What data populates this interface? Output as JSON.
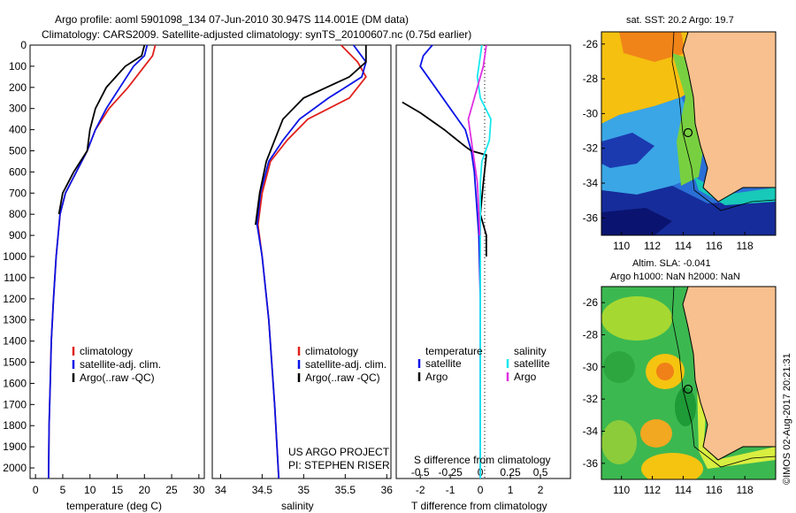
{
  "header": {
    "line1": "Argo profile: aoml 5901098_134 07-Jun-2010 30.947S 114.001E (DM data)",
    "line2": "Climatology: CARS2009. Satellite-adjusted climatology: synTS_20100607.nc (0.75d earlier)"
  },
  "colors": {
    "climatology": "#e0201c",
    "satellite": "#0a14e6",
    "argo": "#000000",
    "sat_salinity": "#18e8ee",
    "argo_salinity": "#e030e0",
    "land": "#f7c08e"
  },
  "axis": {
    "depth_ticks": [
      "0",
      "100",
      "200",
      "300",
      "400",
      "500",
      "600",
      "700",
      "800",
      "900",
      "1000",
      "1100",
      "1200",
      "1300",
      "1400",
      "1500",
      "1600",
      "1700",
      "1800",
      "1900",
      "2000"
    ]
  },
  "panels": {
    "temperature": {
      "xlabel": "temperature (deg C)",
      "ticks": [
        "0",
        "5",
        "10",
        "15",
        "20",
        "25",
        "30"
      ],
      "legend": [
        "climatology",
        "satellite-adj. clim.",
        "Argo(..raw -QC)"
      ]
    },
    "salinity": {
      "xlabel": "salinity",
      "ticks": [
        "34",
        "34.5",
        "35",
        "35.5",
        "36"
      ],
      "legend": [
        "climatology",
        "satellite-adj. clim.",
        "Argo(..raw -QC)"
      ],
      "credit1": "US ARGO PROJECT",
      "credit2": "PI: STEPHEN RISER"
    },
    "difference": {
      "xlabel": "T difference from climatology",
      "top_title": "S difference from climatology",
      "s_ticks": [
        "-0.5",
        "-0.25",
        "0",
        "0.25",
        "0.5"
      ],
      "t_ticks": [
        "-2",
        "-1",
        "0",
        "1",
        "2"
      ],
      "legend_temp_head": "temperature",
      "legend_sal_head": "salinity",
      "legend_sat": "satellite",
      "legend_argo": "Argo"
    }
  },
  "maps": {
    "sst": {
      "title": "sat. SST: 20.2  Argo: 19.7",
      "yticks": [
        "-26",
        "-28",
        "-30",
        "-32",
        "-34",
        "-36"
      ],
      "xticks": [
        "110",
        "112",
        "114",
        "116",
        "118"
      ]
    },
    "sla": {
      "title1": "Altim. SLA: -0.041",
      "title2": "Argo h1000: NaN h2000: NaN",
      "yticks": [
        "-26",
        "-28",
        "-30",
        "-32",
        "-34",
        "-36"
      ],
      "xticks": [
        "110",
        "112",
        "114",
        "116",
        "118"
      ]
    }
  },
  "watermark": "©IMOS 02-Aug-2017 20:21:31",
  "chart_data": [
    {
      "type": "line",
      "xlabel": "temperature (deg C)",
      "ylabel": "",
      "xlim": [
        -1,
        31
      ],
      "ylim": [
        2050,
        0
      ],
      "series": [
        {
          "name": "climatology",
          "x": [
            22.0,
            21.5,
            20.0,
            17.0,
            13.5,
            11.0,
            9.5,
            7.5,
            5.5,
            4.5,
            3.8,
            3.3,
            2.9,
            2.7,
            2.5,
            2.4
          ],
          "y": [
            0,
            50,
            100,
            200,
            300,
            400,
            500,
            600,
            700,
            800,
            1000,
            1200,
            1400,
            1600,
            1800,
            2050
          ]
        },
        {
          "name": "satellite-adj. clim.",
          "x": [
            20.5,
            20.0,
            18.0,
            15.5,
            13.0,
            11.0,
            9.5,
            7.5,
            5.5,
            4.5,
            3.8,
            3.3,
            2.9,
            2.7,
            2.5,
            2.4
          ],
          "y": [
            0,
            50,
            100,
            200,
            300,
            400,
            500,
            600,
            700,
            800,
            1000,
            1200,
            1400,
            1600,
            1800,
            2050
          ]
        },
        {
          "name": "Argo(..raw -QC)",
          "x": [
            20.0,
            19.5,
            16.5,
            13.0,
            11.0,
            10.0,
            9.5,
            7.0,
            5.0,
            4.3
          ],
          "y": [
            0,
            50,
            100,
            200,
            300,
            400,
            500,
            600,
            700,
            800
          ]
        }
      ]
    },
    {
      "type": "line",
      "xlabel": "salinity",
      "xlim": [
        33.9,
        36.05
      ],
      "ylim": [
        2050,
        0
      ],
      "series": [
        {
          "name": "climatology",
          "x": [
            35.45,
            35.65,
            35.75,
            35.55,
            35.05,
            34.8,
            34.6,
            34.5,
            34.45,
            34.5,
            34.58,
            34.65,
            34.7
          ],
          "y": [
            0,
            80,
            150,
            250,
            350,
            450,
            550,
            700,
            850,
            1000,
            1300,
            1700,
            2050
          ]
        },
        {
          "name": "satellite-adj. clim.",
          "x": [
            35.6,
            35.75,
            35.7,
            35.3,
            34.95,
            34.75,
            34.58,
            34.48,
            34.44,
            34.5,
            34.58,
            34.65,
            34.7
          ],
          "y": [
            0,
            80,
            150,
            250,
            350,
            450,
            550,
            700,
            850,
            1000,
            1300,
            1700,
            2050
          ]
        },
        {
          "name": "Argo(..raw -QC)",
          "x": [
            35.75,
            35.75,
            35.55,
            35.0,
            34.75,
            34.65,
            34.55,
            34.47,
            34.42
          ],
          "y": [
            0,
            80,
            150,
            250,
            350,
            450,
            550,
            700,
            850
          ]
        }
      ]
    },
    {
      "type": "line",
      "xlabel": "T difference from climatology",
      "title": "S difference from climatology",
      "xlim": [
        -2.8,
        3.0
      ],
      "ylim": [
        2050,
        0
      ],
      "series": [
        {
          "name": "temperature satellite",
          "x": [
            -1.6,
            -1.9,
            -2.0,
            -1.5,
            -1.0,
            -0.5,
            -0.3,
            -0.2,
            -0.15,
            -0.1,
            -0.05,
            0.0,
            0.0,
            0.0
          ],
          "y": [
            0,
            50,
            100,
            200,
            300,
            400,
            500,
            600,
            700,
            800,
            900,
            1200,
            1600,
            2050
          ]
        },
        {
          "name": "temperature Argo",
          "x": [
            -2.6,
            -2.0,
            -1.2,
            -0.5,
            -0.3,
            0.2,
            0.1,
            0.0,
            0.2,
            0.2
          ],
          "y": [
            270,
            320,
            400,
            480,
            500,
            520,
            650,
            800,
            900,
            1000
          ]
        },
        {
          "name": "salinity satellite",
          "x": [
            0.05,
            -0.1,
            0.0,
            0.35,
            0.3,
            0.05,
            0.0,
            0.0,
            0.0,
            0.0,
            0.0
          ],
          "y": [
            0,
            150,
            250,
            350,
            450,
            550,
            650,
            800,
            1000,
            1500,
            2050
          ]
        },
        {
          "name": "salinity Argo",
          "x": [
            0.2,
            0.1,
            -0.1,
            -0.4,
            -0.25,
            -0.1,
            -0.05,
            -0.02
          ],
          "y": [
            0,
            100,
            200,
            350,
            500,
            650,
            800,
            900
          ]
        }
      ]
    }
  ]
}
